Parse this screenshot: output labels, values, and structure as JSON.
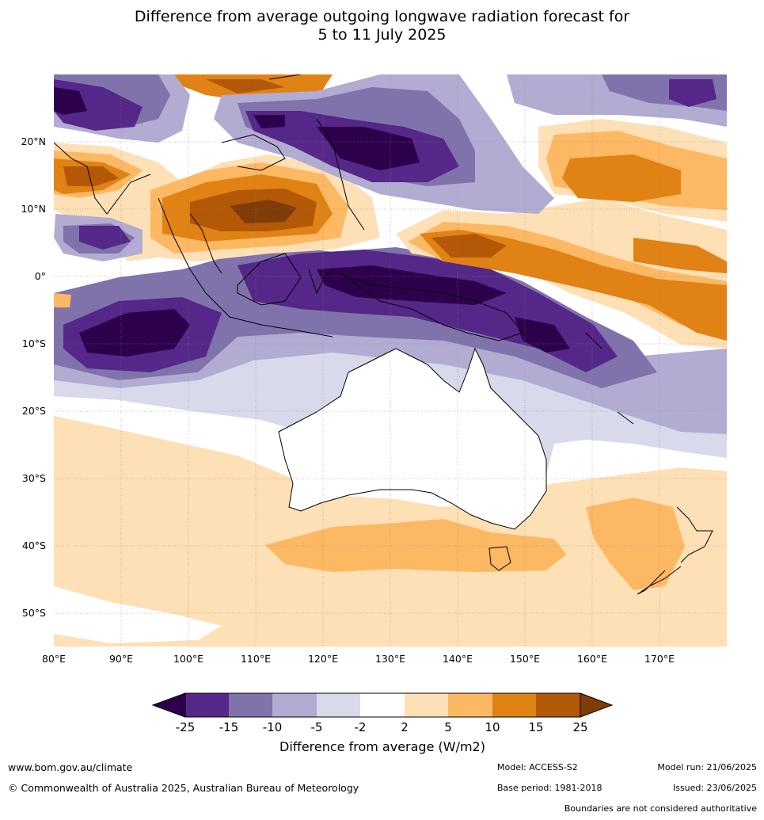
{
  "title_line1": "Difference from average outgoing longwave radiation forecast for",
  "title_line2": "5 to 11 July 2025",
  "map": {
    "lon_ticks": [
      "80°E",
      "90°E",
      "100°E",
      "110°E",
      "120°E",
      "130°E",
      "140°E",
      "150°E",
      "160°E",
      "170°E"
    ],
    "lat_ticks": [
      "20°N",
      "10°N",
      "0°",
      "10°S",
      "20°S",
      "30°S",
      "40°S",
      "50°S"
    ],
    "lon_range": [
      80,
      180
    ],
    "lat_range": [
      -55,
      30
    ]
  },
  "colorbar": {
    "tick_labels": [
      "-25",
      "-15",
      "-10",
      "-5",
      "-2",
      "2",
      "5",
      "10",
      "15",
      "25"
    ],
    "colors": [
      "#2d004b",
      "#542788",
      "#8073ac",
      "#b2abd2",
      "#d8daeb",
      "#ffffff",
      "#fee0b6",
      "#fdb863",
      "#e08214",
      "#b35806",
      "#7f3b08"
    ],
    "title": "Difference from average (W/m2)"
  },
  "footer": {
    "website": "www.bom.gov.au/climate",
    "copyright": "© Commonwealth of Australia 2025, Australian Bureau of Meteorology",
    "model": "Model: ACCESS-S2",
    "base_period": "Base period: 1981-2018",
    "model_run": "Model run: 21/06/2025",
    "issued": "Issued: 23/06/2025",
    "disclaimer": "Boundaries are not considered authoritative"
  }
}
